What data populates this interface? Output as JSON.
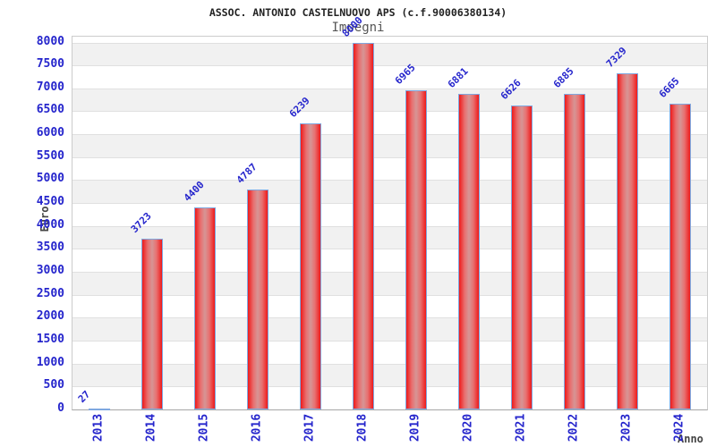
{
  "chart_data": {
    "type": "bar",
    "title": "ASSOC. ANTONIO CASTELNUOVO APS (c.f.90006380134)",
    "subtitle": "Impegni",
    "xlabel": "Anno",
    "ylabel": "Euro",
    "categories": [
      "2013",
      "2014",
      "2015",
      "2016",
      "2017",
      "2018",
      "2019",
      "2020",
      "2021",
      "2022",
      "2023",
      "2024"
    ],
    "values": [
      27,
      3723,
      4400,
      4787,
      6239,
      8000,
      6965,
      6881,
      6626,
      6885,
      7329,
      6665
    ],
    "ylim": [
      0,
      8000
    ],
    "ytick_step": 500,
    "grid": true,
    "legend": false,
    "colors": {
      "bar_edge": "#ee1a1a",
      "bar_center": "#d69595",
      "bar_border": "#7fa8e0",
      "value_text": "#2525cc",
      "tick_text": "#2525cc",
      "axis_title_text": "#444444",
      "band": "#f1f1f1",
      "grid_line": "#e0e0e0",
      "title_text": "#222222",
      "subtitle_text": "#555555"
    }
  }
}
